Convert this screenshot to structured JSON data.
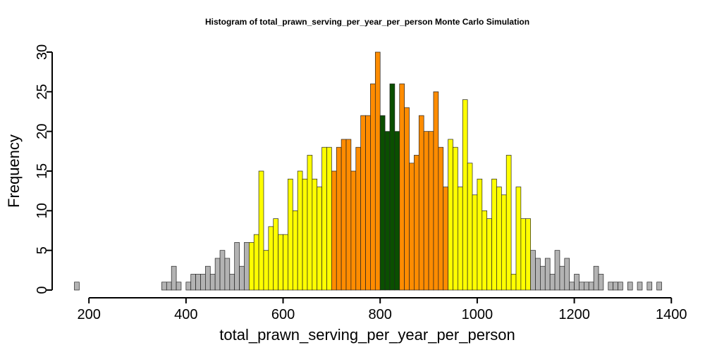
{
  "chart_data": {
    "type": "bar",
    "title": "Histogram of  total_prawn_serving_per_year_per_person  Monte Carlo Simulation",
    "xlabel": "total_prawn_serving_per_year_per_person",
    "ylabel": "Frequency",
    "xlim": [
      170,
      1380
    ],
    "ylim": [
      0,
      30
    ],
    "bin_width": 10,
    "x_ticks": [
      200,
      400,
      600,
      800,
      1000,
      1200,
      1400
    ],
    "y_ticks": [
      0,
      5,
      10,
      15,
      20,
      25,
      30
    ],
    "colors": {
      "gray": "#b3b3b3",
      "yellow": "#ffff00",
      "orange": "#ff8c00",
      "green": "#0a4f00"
    },
    "bins": [
      {
        "x": 170,
        "count": 1,
        "color": "gray"
      },
      {
        "x": 180,
        "count": 0,
        "color": "gray"
      },
      {
        "x": 190,
        "count": 0,
        "color": "gray"
      },
      {
        "x": 200,
        "count": 0,
        "color": "gray"
      },
      {
        "x": 210,
        "count": 0,
        "color": "gray"
      },
      {
        "x": 220,
        "count": 0,
        "color": "gray"
      },
      {
        "x": 230,
        "count": 0,
        "color": "gray"
      },
      {
        "x": 240,
        "count": 0,
        "color": "gray"
      },
      {
        "x": 250,
        "count": 0,
        "color": "gray"
      },
      {
        "x": 260,
        "count": 0,
        "color": "gray"
      },
      {
        "x": 270,
        "count": 0,
        "color": "gray"
      },
      {
        "x": 280,
        "count": 0,
        "color": "gray"
      },
      {
        "x": 290,
        "count": 0,
        "color": "gray"
      },
      {
        "x": 300,
        "count": 0,
        "color": "gray"
      },
      {
        "x": 310,
        "count": 0,
        "color": "gray"
      },
      {
        "x": 320,
        "count": 0,
        "color": "gray"
      },
      {
        "x": 330,
        "count": 0,
        "color": "gray"
      },
      {
        "x": 340,
        "count": 0,
        "color": "gray"
      },
      {
        "x": 350,
        "count": 1,
        "color": "gray"
      },
      {
        "x": 360,
        "count": 1,
        "color": "gray"
      },
      {
        "x": 370,
        "count": 3,
        "color": "gray"
      },
      {
        "x": 380,
        "count": 1,
        "color": "gray"
      },
      {
        "x": 390,
        "count": 0,
        "color": "gray"
      },
      {
        "x": 400,
        "count": 1,
        "color": "gray"
      },
      {
        "x": 410,
        "count": 2,
        "color": "gray"
      },
      {
        "x": 420,
        "count": 2,
        "color": "gray"
      },
      {
        "x": 430,
        "count": 2,
        "color": "gray"
      },
      {
        "x": 440,
        "count": 3,
        "color": "gray"
      },
      {
        "x": 450,
        "count": 2,
        "color": "gray"
      },
      {
        "x": 460,
        "count": 4,
        "color": "gray"
      },
      {
        "x": 470,
        "count": 5,
        "color": "gray"
      },
      {
        "x": 480,
        "count": 4,
        "color": "gray"
      },
      {
        "x": 490,
        "count": 2,
        "color": "gray"
      },
      {
        "x": 500,
        "count": 6,
        "color": "gray"
      },
      {
        "x": 510,
        "count": 3,
        "color": "gray"
      },
      {
        "x": 520,
        "count": 6,
        "color": "gray"
      },
      {
        "x": 530,
        "count": 6,
        "color": "yellow"
      },
      {
        "x": 540,
        "count": 7,
        "color": "yellow"
      },
      {
        "x": 550,
        "count": 15,
        "color": "yellow"
      },
      {
        "x": 560,
        "count": 5,
        "color": "yellow"
      },
      {
        "x": 570,
        "count": 8,
        "color": "yellow"
      },
      {
        "x": 580,
        "count": 9,
        "color": "yellow"
      },
      {
        "x": 590,
        "count": 7,
        "color": "yellow"
      },
      {
        "x": 600,
        "count": 7,
        "color": "yellow"
      },
      {
        "x": 610,
        "count": 14,
        "color": "yellow"
      },
      {
        "x": 620,
        "count": 10,
        "color": "yellow"
      },
      {
        "x": 630,
        "count": 15,
        "color": "yellow"
      },
      {
        "x": 640,
        "count": 14,
        "color": "yellow"
      },
      {
        "x": 650,
        "count": 17,
        "color": "yellow"
      },
      {
        "x": 660,
        "count": 14,
        "color": "yellow"
      },
      {
        "x": 670,
        "count": 13,
        "color": "yellow"
      },
      {
        "x": 680,
        "count": 18,
        "color": "yellow"
      },
      {
        "x": 690,
        "count": 18,
        "color": "yellow"
      },
      {
        "x": 700,
        "count": 15,
        "color": "orange"
      },
      {
        "x": 710,
        "count": 18,
        "color": "orange"
      },
      {
        "x": 720,
        "count": 19,
        "color": "orange"
      },
      {
        "x": 730,
        "count": 19,
        "color": "orange"
      },
      {
        "x": 740,
        "count": 15,
        "color": "orange"
      },
      {
        "x": 750,
        "count": 18,
        "color": "orange"
      },
      {
        "x": 760,
        "count": 22,
        "color": "orange"
      },
      {
        "x": 770,
        "count": 22,
        "color": "orange"
      },
      {
        "x": 780,
        "count": 26,
        "color": "orange"
      },
      {
        "x": 790,
        "count": 30,
        "color": "orange"
      },
      {
        "x": 800,
        "count": 22,
        "color": "green"
      },
      {
        "x": 810,
        "count": 20,
        "color": "green"
      },
      {
        "x": 820,
        "count": 26,
        "color": "green"
      },
      {
        "x": 830,
        "count": 20,
        "color": "green"
      },
      {
        "x": 840,
        "count": 26,
        "color": "orange"
      },
      {
        "x": 850,
        "count": 23,
        "color": "orange"
      },
      {
        "x": 860,
        "count": 16,
        "color": "orange"
      },
      {
        "x": 870,
        "count": 17,
        "color": "orange"
      },
      {
        "x": 880,
        "count": 22,
        "color": "orange"
      },
      {
        "x": 890,
        "count": 20,
        "color": "orange"
      },
      {
        "x": 900,
        "count": 20,
        "color": "orange"
      },
      {
        "x": 910,
        "count": 25,
        "color": "orange"
      },
      {
        "x": 920,
        "count": 18,
        "color": "orange"
      },
      {
        "x": 930,
        "count": 13,
        "color": "orange"
      },
      {
        "x": 940,
        "count": 19,
        "color": "yellow"
      },
      {
        "x": 950,
        "count": 18,
        "color": "yellow"
      },
      {
        "x": 960,
        "count": 13,
        "color": "yellow"
      },
      {
        "x": 970,
        "count": 24,
        "color": "yellow"
      },
      {
        "x": 980,
        "count": 16,
        "color": "yellow"
      },
      {
        "x": 990,
        "count": 12,
        "color": "yellow"
      },
      {
        "x": 1000,
        "count": 14,
        "color": "yellow"
      },
      {
        "x": 1010,
        "count": 10,
        "color": "yellow"
      },
      {
        "x": 1020,
        "count": 9,
        "color": "yellow"
      },
      {
        "x": 1030,
        "count": 14,
        "color": "yellow"
      },
      {
        "x": 1040,
        "count": 13,
        "color": "yellow"
      },
      {
        "x": 1050,
        "count": 12,
        "color": "yellow"
      },
      {
        "x": 1060,
        "count": 17,
        "color": "yellow"
      },
      {
        "x": 1070,
        "count": 2,
        "color": "yellow"
      },
      {
        "x": 1080,
        "count": 13,
        "color": "yellow"
      },
      {
        "x": 1090,
        "count": 9,
        "color": "yellow"
      },
      {
        "x": 1100,
        "count": 9,
        "color": "yellow"
      },
      {
        "x": 1110,
        "count": 5,
        "color": "gray"
      },
      {
        "x": 1120,
        "count": 4,
        "color": "gray"
      },
      {
        "x": 1130,
        "count": 3,
        "color": "gray"
      },
      {
        "x": 1140,
        "count": 4,
        "color": "gray"
      },
      {
        "x": 1150,
        "count": 2,
        "color": "gray"
      },
      {
        "x": 1160,
        "count": 5,
        "color": "gray"
      },
      {
        "x": 1170,
        "count": 3,
        "color": "gray"
      },
      {
        "x": 1180,
        "count": 4,
        "color": "gray"
      },
      {
        "x": 1190,
        "count": 1,
        "color": "gray"
      },
      {
        "x": 1200,
        "count": 2,
        "color": "gray"
      },
      {
        "x": 1210,
        "count": 1,
        "color": "gray"
      },
      {
        "x": 1220,
        "count": 1,
        "color": "gray"
      },
      {
        "x": 1230,
        "count": 1,
        "color": "gray"
      },
      {
        "x": 1240,
        "count": 3,
        "color": "gray"
      },
      {
        "x": 1250,
        "count": 2,
        "color": "gray"
      },
      {
        "x": 1260,
        "count": 0,
        "color": "gray"
      },
      {
        "x": 1270,
        "count": 1,
        "color": "gray"
      },
      {
        "x": 1280,
        "count": 1,
        "color": "gray"
      },
      {
        "x": 1290,
        "count": 1,
        "color": "gray"
      },
      {
        "x": 1300,
        "count": 0,
        "color": "gray"
      },
      {
        "x": 1310,
        "count": 1,
        "color": "gray"
      },
      {
        "x": 1320,
        "count": 0,
        "color": "gray"
      },
      {
        "x": 1330,
        "count": 1,
        "color": "gray"
      },
      {
        "x": 1340,
        "count": 0,
        "color": "gray"
      },
      {
        "x": 1350,
        "count": 1,
        "color": "gray"
      },
      {
        "x": 1360,
        "count": 0,
        "color": "gray"
      },
      {
        "x": 1370,
        "count": 1,
        "color": "gray"
      }
    ]
  }
}
